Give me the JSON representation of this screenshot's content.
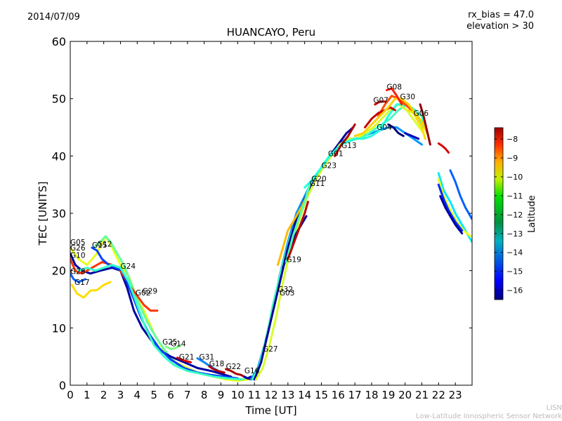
{
  "header": {
    "date": "2014/07/09",
    "rx_bias": "rx_bias = 47.0",
    "elevation": "elevation > 30"
  },
  "footer": {
    "network_abbrev": "LISN",
    "network_name": "Low-Latitude Ionospheric Sensor Network"
  },
  "chart_data": {
    "type": "line",
    "title": "HUANCAYO, Peru",
    "xlabel": "Time [UT]",
    "ylabel": "TEC [UNITS]",
    "xlim": [
      0,
      24
    ],
    "ylim": [
      0,
      60
    ],
    "xticks": [
      0,
      1,
      2,
      3,
      4,
      5,
      6,
      7,
      8,
      9,
      10,
      11,
      12,
      13,
      14,
      15,
      16,
      17,
      18,
      19,
      20,
      21,
      22,
      23
    ],
    "yticks": [
      0,
      10,
      20,
      30,
      40,
      50,
      60
    ],
    "grid": false,
    "colorbar": {
      "label": "Latitude",
      "range": [
        -16.5,
        -7.4
      ],
      "ticks": [
        -8,
        -9,
        -10,
        -11,
        -12,
        -13,
        -14,
        -15,
        -16
      ],
      "tick_labels": [
        "−8",
        "−9",
        "−10",
        "−11",
        "−12",
        "−13",
        "−14",
        "−15",
        "−16"
      ],
      "colormap": "jet"
    },
    "satellite_labels": [
      {
        "name": "G05",
        "t": 0.0,
        "tec": 24.5
      },
      {
        "name": "G26",
        "t": 0.0,
        "tec": 23.5
      },
      {
        "name": "G10",
        "t": 0.0,
        "tec": 22.2
      },
      {
        "name": "G28",
        "t": 0.0,
        "tec": 19.4
      },
      {
        "name": "G17",
        "t": 0.25,
        "tec": 17.5
      },
      {
        "name": "G15",
        "t": 1.3,
        "tec": 24.0
      },
      {
        "name": "G12",
        "t": 1.6,
        "tec": 24.2
      },
      {
        "name": "G24",
        "t": 3.0,
        "tec": 20.3
      },
      {
        "name": "G02",
        "t": 3.9,
        "tec": 15.7
      },
      {
        "name": "G29",
        "t": 4.3,
        "tec": 16.0
      },
      {
        "name": "G25",
        "t": 5.5,
        "tec": 7.1
      },
      {
        "name": "G14",
        "t": 6.0,
        "tec": 6.8
      },
      {
        "name": "G21",
        "t": 6.5,
        "tec": 4.5
      },
      {
        "name": "G31",
        "t": 7.7,
        "tec": 4.5
      },
      {
        "name": "G18",
        "t": 8.3,
        "tec": 3.3
      },
      {
        "name": "G22",
        "t": 9.3,
        "tec": 2.8
      },
      {
        "name": "G16",
        "t": 10.4,
        "tec": 2.1
      },
      {
        "name": "G27",
        "t": 11.5,
        "tec": 5.9
      },
      {
        "name": "G32",
        "t": 12.4,
        "tec": 16.3
      },
      {
        "name": "G03",
        "t": 12.5,
        "tec": 15.7
      },
      {
        "name": "G19",
        "t": 12.9,
        "tec": 21.5
      },
      {
        "name": "G11",
        "t": 14.3,
        "tec": 34.8
      },
      {
        "name": "G20",
        "t": 14.4,
        "tec": 35.6
      },
      {
        "name": "G23",
        "t": 15.0,
        "tec": 37.9
      },
      {
        "name": "G01",
        "t": 15.4,
        "tec": 40.0
      },
      {
        "name": "G13",
        "t": 16.2,
        "tec": 41.4
      },
      {
        "name": "G07",
        "t": 18.1,
        "tec": 49.3
      },
      {
        "name": "G08",
        "t": 18.9,
        "tec": 51.6
      },
      {
        "name": "G30",
        "t": 19.7,
        "tec": 49.9
      },
      {
        "name": "G04",
        "t": 18.3,
        "tec": 44.6
      },
      {
        "name": "G06",
        "t": 20.5,
        "tec": 47.0
      }
    ],
    "series": [
      {
        "lat": -11.0,
        "t": [
          0.0,
          0.5,
          1.0,
          1.6,
          2.1,
          2.5,
          3.0,
          3.5,
          4.0,
          4.4,
          5.0,
          5.6,
          6.3,
          7.0,
          7.8,
          8.6,
          9.3,
          10.0,
          10.6
        ],
        "tec": [
          24,
          22,
          21,
          23,
          26,
          24,
          21,
          19,
          15,
          13,
          9,
          6,
          4,
          3,
          2,
          1.5,
          1,
          0.8,
          1
        ]
      },
      {
        "name_hint": "g12",
        "lat": -12.2,
        "t": [
          1.4,
          1.8,
          2.1,
          2.4,
          2.8,
          3.2,
          3.6,
          4.0,
          4.6,
          5.2,
          5.8,
          6.4,
          7.2,
          8.0,
          8.8,
          9.6,
          10.3,
          10.8
        ],
        "tec": [
          24,
          25,
          26,
          25,
          23,
          21,
          18,
          15,
          11,
          8,
          5.5,
          3.5,
          2.5,
          2,
          1.5,
          1.2,
          1,
          1.5
        ]
      },
      {
        "lat": -16.2,
        "t": [
          0.0,
          0.3,
          0.7,
          1.2,
          1.8,
          2.5,
          3.0,
          3.4,
          3.8,
          4.3,
          4.8,
          5.4,
          6.0,
          6.8,
          7.6,
          8.4,
          9.0,
          9.6
        ],
        "tec": [
          23,
          21,
          20,
          19.5,
          20,
          20.5,
          20,
          17,
          13,
          10,
          8,
          6,
          5,
          4,
          3,
          2.5,
          2,
          1.5
        ]
      },
      {
        "lat": -9.0,
        "t": [
          0.0,
          0.3,
          0.7,
          1.3,
          1.9,
          2.5,
          3.0,
          3.4,
          3.9,
          4.4,
          4.8,
          5.2
        ],
        "tec": [
          22,
          20,
          19.5,
          20.5,
          21.5,
          21,
          20,
          18,
          16,
          14,
          13,
          13
        ]
      },
      {
        "lat": -14.5,
        "t": [
          0.0,
          0.2,
          0.5,
          0.9
        ],
        "tec": [
          19.5,
          18.5,
          18,
          18.5
        ]
      },
      {
        "lat": -10.5,
        "t": [
          0.1,
          0.4,
          0.8,
          1.2,
          1.6,
          2.0,
          2.4
        ],
        "tec": [
          17.5,
          16,
          15.3,
          16.5,
          16.6,
          17.5,
          18
        ]
      },
      {
        "lat": -14.8,
        "t": [
          1.3,
          1.6,
          1.9,
          2.3,
          2.7,
          3.1,
          3.4,
          3.8,
          4.2,
          4.7,
          5.3,
          6.0,
          6.8,
          7.6,
          8.4,
          9.2,
          10.0
        ],
        "tec": [
          24,
          23.5,
          22,
          21,
          20.5,
          20,
          18,
          15,
          12,
          9,
          6.5,
          4.5,
          3,
          2.2,
          1.8,
          1.5,
          1.2
        ]
      },
      {
        "lat": -12.6,
        "t": [
          0.5,
          1.0,
          1.5,
          2.0,
          2.5,
          3.0,
          3.5,
          4.0,
          4.5,
          5.0,
          5.6,
          6.2,
          7.0,
          7.8,
          8.6,
          9.4,
          10.2
        ],
        "tec": [
          20,
          20.5,
          20,
          20.5,
          21,
          20.5,
          18,
          14,
          10,
          7,
          5,
          3.5,
          2.5,
          2,
          1.5,
          1.2,
          1
        ]
      },
      {
        "lat": -12.0,
        "t": [
          5.7,
          6.0,
          6.3,
          6.6
        ],
        "tec": [
          6.8,
          6.3,
          6.5,
          7
        ]
      },
      {
        "lat": -8.2,
        "t": [
          6.4,
          6.8,
          7.2
        ],
        "tec": [
          4.8,
          4.3,
          4
        ]
      },
      {
        "lat": -14.2,
        "t": [
          7.6,
          8.0,
          8.4,
          8.8
        ],
        "tec": [
          4.7,
          4.0,
          3.2,
          2.6
        ]
      },
      {
        "lat": -7.8,
        "t": [
          8.3,
          8.5,
          8.8,
          9.2
        ],
        "tec": [
          3.3,
          2.9,
          2.5,
          2.2
        ]
      },
      {
        "lat": -7.8,
        "t": [
          9.3,
          9.6,
          9.9,
          10.2,
          10.5,
          10.8
        ],
        "tec": [
          2.8,
          2.5,
          2.0,
          1.8,
          1.3,
          1.0
        ]
      },
      {
        "lat": -16.0,
        "t": [
          10.4,
          10.6,
          10.8
        ],
        "tec": [
          1.5,
          1.2,
          1.5
        ]
      },
      {
        "lat": -14.0,
        "t": [
          10.8,
          11.2,
          11.6,
          12.0,
          12.5,
          13.0,
          13.5,
          14.0,
          14.5,
          15.0,
          15.5,
          16.0,
          16.5,
          17.0,
          17.5,
          18.0,
          18.5,
          19.0,
          19.5,
          20.0,
          20.5,
          21.0
        ],
        "tec": [
          1,
          3,
          7,
          12,
          19,
          25,
          30,
          33,
          36,
          38,
          40,
          42,
          43,
          43,
          43.5,
          44,
          44.5,
          45,
          45,
          44,
          43,
          42
        ]
      },
      {
        "lat": -12.5,
        "t": [
          10.9,
          11.3,
          11.7,
          12.1,
          12.6,
          13.1,
          13.6,
          14.1,
          14.6,
          15.1,
          15.6,
          16.1,
          16.6,
          17.1,
          17.6,
          18.1,
          18.6,
          19.1,
          19.6,
          20.1,
          20.6,
          21.1
        ],
        "tec": [
          1,
          3.5,
          8,
          14,
          20,
          25.5,
          29.5,
          33,
          36,
          38.5,
          40.5,
          42,
          42.5,
          43,
          43.5,
          44.5,
          45.5,
          46.5,
          48,
          49,
          48,
          45
        ]
      },
      {
        "lat": -16.3,
        "t": [
          11.0,
          11.4,
          11.8,
          12.2,
          12.6,
          13.0,
          13.5,
          14.0,
          14.5,
          15.0,
          15.5,
          16.0,
          16.5,
          16.9
        ],
        "tec": [
          1,
          4,
          9,
          14,
          19,
          24,
          29,
          32.5,
          35.5,
          37.5,
          40,
          42,
          44,
          45
        ]
      },
      {
        "lat": -11.2,
        "t": [
          11.1,
          11.5,
          11.9,
          12.3,
          12.7,
          13.1,
          13.6,
          14.1,
          14.6,
          15.1,
          15.6,
          16.1,
          16.6,
          17.1,
          17.6,
          18.1,
          18.6,
          19.1,
          19.6,
          20.1,
          20.6,
          21.1
        ],
        "tec": [
          1,
          3,
          7,
          12,
          18,
          23,
          28,
          32.5,
          35.5,
          38,
          40,
          42,
          43,
          43,
          44,
          45,
          46.5,
          48,
          49,
          48,
          46,
          44
        ]
      },
      {
        "lat": -10.2,
        "t": [
          12.4,
          12.7,
          13.0,
          13.4,
          13.8,
          14.2
        ],
        "tec": [
          21,
          24,
          27,
          29,
          31,
          33.5
        ]
      },
      {
        "lat": -16.3,
        "t": [
          12.7,
          13.0,
          13.4,
          13.8,
          14.1
        ],
        "tec": [
          20.5,
          23,
          26,
          28,
          29.5
        ]
      },
      {
        "lat": -12.3,
        "t": [
          12.9,
          13.3,
          13.7,
          14.0,
          14.3,
          14.5
        ],
        "tec": [
          21.5,
          26,
          29.5,
          32,
          35,
          36
        ]
      },
      {
        "lat": -7.9,
        "t": [
          13.0,
          13.5,
          14.0,
          14.2
        ],
        "tec": [
          22,
          26,
          30,
          32
        ]
      },
      {
        "lat": -12.8,
        "t": [
          14.0,
          14.5,
          15.0,
          15.5,
          16.0,
          16.5,
          17.0,
          17.5,
          18.0,
          18.5,
          19.0,
          19.5,
          20.0,
          20.5,
          21.0,
          21.3
        ],
        "tec": [
          34.5,
          36,
          38,
          40,
          41.5,
          42.5,
          43,
          43,
          43.5,
          44.5,
          47,
          49,
          49,
          48,
          47,
          44
        ]
      },
      {
        "lat": -7.8,
        "t": [
          15.8,
          16.2,
          16.6,
          17.0
        ],
        "tec": [
          40,
          42,
          43.5,
          45.5
        ]
      },
      {
        "lat": -8.0,
        "t": [
          18.2,
          18.5,
          18.8
        ],
        "tec": [
          49,
          49.5,
          49.5
        ]
      },
      {
        "lat": -9.2,
        "t": [
          18.4,
          18.8,
          19.2,
          19.6,
          20.0,
          20.4,
          20.8
        ],
        "tec": [
          47,
          49,
          50.5,
          50,
          49,
          48,
          46
        ]
      },
      {
        "lat": -8.0,
        "t": [
          17.6,
          18.0,
          18.4,
          18.8,
          19.1,
          19.4
        ],
        "tec": [
          45,
          46.5,
          47.5,
          48,
          48.5,
          48
        ]
      },
      {
        "lat": -10.4,
        "t": [
          17.0,
          17.5,
          18.0,
          18.5,
          19.0,
          19.4,
          19.8,
          20.2,
          20.6,
          21.0,
          21.3
        ],
        "tec": [
          43.5,
          44,
          45.5,
          47,
          48.5,
          50,
          50,
          49,
          47.5,
          46,
          44
        ]
      },
      {
        "lat": -8.8,
        "t": [
          18.9,
          19.2,
          19.5,
          19.8
        ],
        "tec": [
          51.5,
          51.8,
          50.5,
          49
        ]
      },
      {
        "lat": -16.5,
        "t": [
          19.0,
          19.3,
          19.6,
          19.9
        ],
        "tec": [
          45.5,
          45,
          44,
          43.5
        ]
      },
      {
        "lat": -16.0,
        "t": [
          20.0,
          20.4,
          20.8
        ],
        "tec": [
          44,
          43.5,
          43
        ]
      },
      {
        "lat": -7.6,
        "t": [
          20.9,
          21.1,
          21.3,
          21.5
        ],
        "tec": [
          49,
          47,
          44.5,
          42
        ]
      },
      {
        "lat": -10.5,
        "t": [
          20.2,
          20.5,
          20.8,
          21.0,
          21.2
        ],
        "tec": [
          48,
          47.5,
          46,
          45,
          43
        ]
      },
      {
        "lat": -8.2,
        "t": [
          22.0,
          22.2,
          22.4,
          22.6
        ],
        "tec": [
          42.2,
          41.8,
          41.3,
          40.6
        ]
      },
      {
        "lat": -14.5,
        "t": [
          22.7,
          23.0,
          23.3,
          23.6,
          24.0
        ],
        "tec": [
          37.5,
          35.5,
          33,
          31,
          29
        ]
      },
      {
        "lat": -13.3,
        "t": [
          22.0,
          22.3,
          22.7,
          23.0,
          23.4,
          23.8,
          24.0
        ],
        "tec": [
          37,
          34,
          32,
          30,
          28,
          26,
          25
        ]
      },
      {
        "lat": -11.0,
        "t": [
          22.0,
          22.3,
          22.7,
          23.1,
          23.5,
          23.9
        ],
        "tec": [
          36,
          33,
          30.5,
          28.5,
          27,
          26
        ]
      },
      {
        "lat": -15.0,
        "t": [
          22.0,
          22.3,
          22.6,
          23.0,
          23.4
        ],
        "tec": [
          35,
          32.5,
          30.5,
          28.5,
          27
        ]
      },
      {
        "lat": -16.2,
        "t": [
          22.1,
          22.4,
          22.7,
          23.0,
          23.4
        ],
        "tec": [
          33,
          31,
          29.5,
          28,
          26.5
        ]
      }
    ]
  }
}
